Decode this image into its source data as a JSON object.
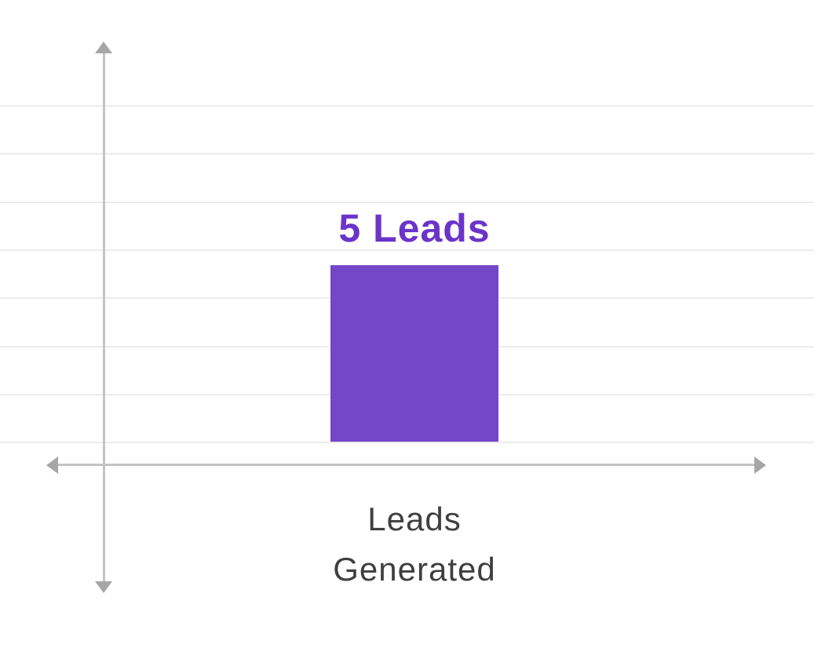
{
  "chart_data": {
    "type": "bar",
    "title": "",
    "categories": [
      "Leads Generated"
    ],
    "values": [
      5
    ],
    "series": [
      {
        "name": "Leads Generated",
        "values": [
          5
        ]
      }
    ],
    "data_labels": [
      "5 Leads"
    ],
    "xlabel": "",
    "ylabel": "",
    "xlabel_lines": [
      "Leads",
      "Generated"
    ],
    "ylim": [
      0,
      8
    ],
    "grid": true,
    "gridline_count": 8,
    "legend": "none",
    "axes": {
      "x_style": "double-arrow",
      "y_style": "double-arrow",
      "tick_labels": "none"
    },
    "colors": {
      "bar": "#7347c8",
      "bar_label": "#6b34c9",
      "axis": "#c3c3c3",
      "arrow": "#a6a6a6",
      "gridline": "#ececec",
      "text": "#3f3f3f",
      "background": "#ffffff"
    }
  }
}
